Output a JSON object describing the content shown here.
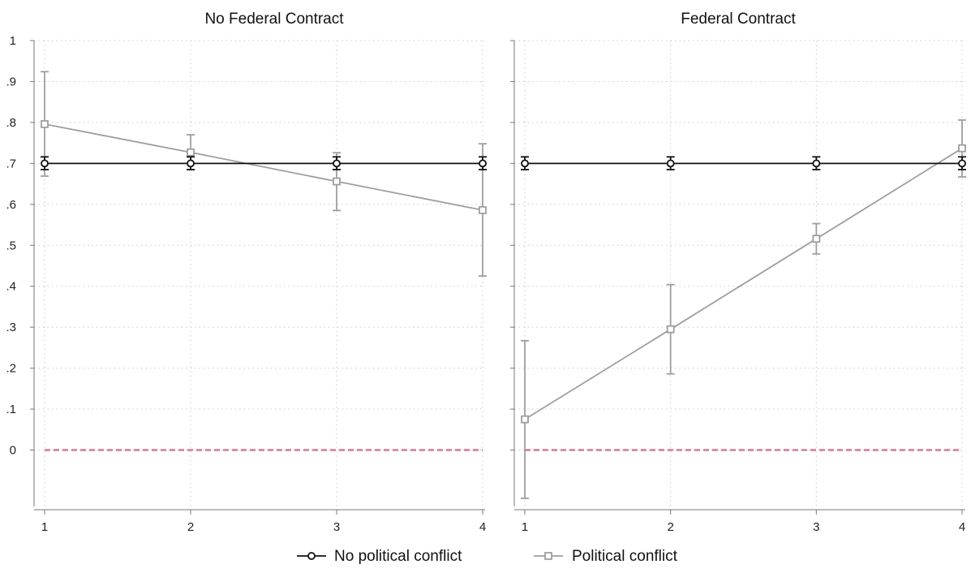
{
  "chart_data": {
    "type": "line",
    "y_axis": {
      "ylim": [
        -0.13,
        1.0
      ],
      "ticks": [
        0,
        0.1,
        0.2,
        0.3,
        0.4,
        0.5,
        0.6,
        0.7,
        0.8,
        0.9,
        1.0
      ],
      "tick_labels": [
        "0",
        ".1",
        ".2",
        ".3",
        ".4",
        ".5",
        ".6",
        ".7",
        ".8",
        ".9",
        "1"
      ]
    },
    "x_axis": {
      "ticks": [
        1,
        2,
        3,
        4
      ],
      "tick_labels": [
        "1",
        "2",
        "3",
        "4"
      ]
    },
    "grid": true,
    "reference_line": {
      "y": 0,
      "style": "dashed",
      "color": "#d4789c"
    },
    "legend": {
      "placement": "bottom",
      "entries": [
        {
          "label": "No political conflict",
          "color": "#111111",
          "marker": "circle"
        },
        {
          "label": "Political conflict",
          "color": "#9e9e9e",
          "marker": "square"
        }
      ]
    },
    "panels": [
      {
        "title": "No Federal Contract",
        "series": [
          {
            "name": "No political conflict",
            "x": [
              1,
              2,
              3,
              4
            ],
            "y": [
              0.7,
              0.7,
              0.7,
              0.7
            ],
            "ci_low": [
              0.685,
              0.685,
              0.685,
              0.685
            ],
            "ci_high": [
              0.716,
              0.716,
              0.716,
              0.716
            ]
          },
          {
            "name": "Political conflict",
            "x": [
              1,
              2,
              3,
              4
            ],
            "y": [
              0.796,
              0.727,
              0.656,
              0.586
            ],
            "ci_low": [
              0.669,
              0.685,
              0.585,
              0.425
            ],
            "ci_high": [
              0.924,
              0.77,
              0.726,
              0.748
            ]
          }
        ]
      },
      {
        "title": "Federal Contract",
        "series": [
          {
            "name": "No political conflict",
            "x": [
              1,
              2,
              3,
              4
            ],
            "y": [
              0.7,
              0.7,
              0.7,
              0.7
            ],
            "ci_low": [
              0.685,
              0.685,
              0.685,
              0.685
            ],
            "ci_high": [
              0.716,
              0.716,
              0.716,
              0.716
            ]
          },
          {
            "name": "Political conflict",
            "x": [
              1,
              2,
              3,
              4
            ],
            "y": [
              0.075,
              0.295,
              0.516,
              0.737
            ],
            "ci_low": [
              -0.118,
              0.186,
              0.479,
              0.667
            ],
            "ci_high": [
              0.267,
              0.404,
              0.553,
              0.806
            ]
          }
        ]
      }
    ]
  }
}
